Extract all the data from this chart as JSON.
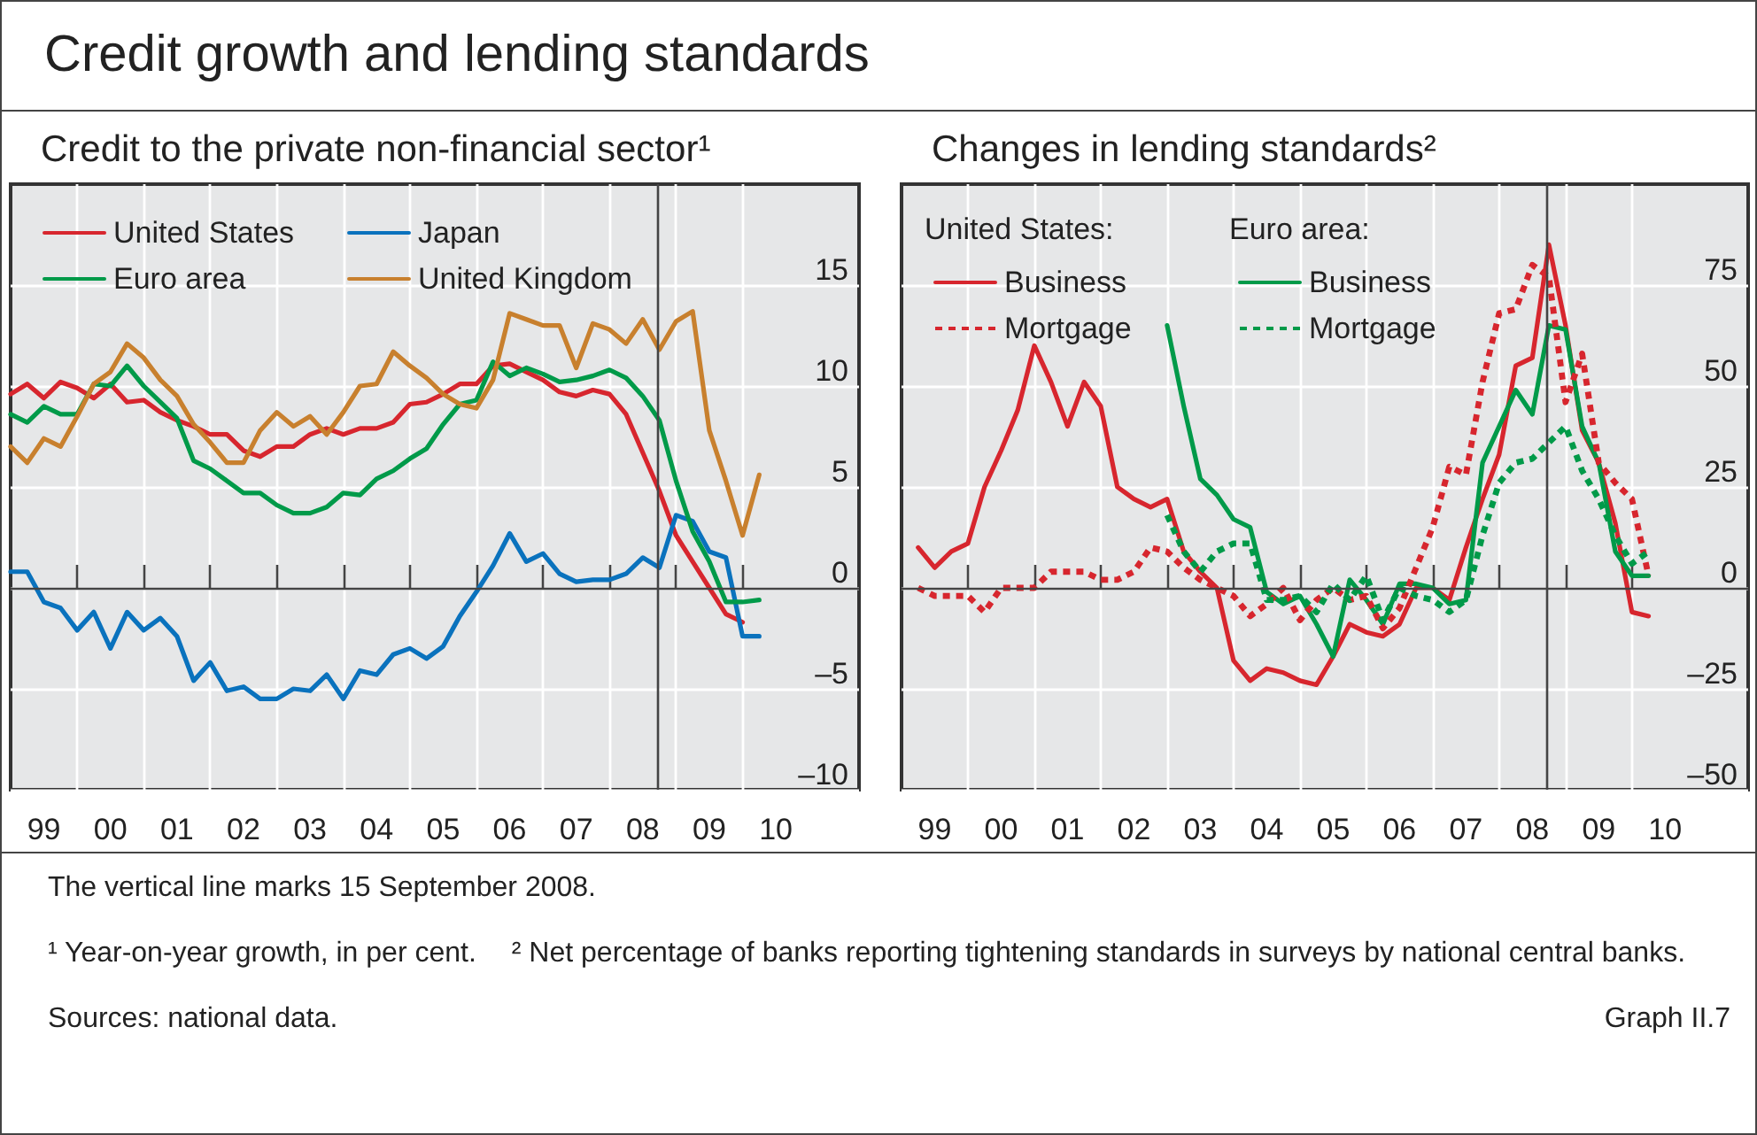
{
  "chart_data": [
    {
      "type": "other",
      "title": "Credit growth and lending standards"
    },
    {
      "type": "line",
      "title": "Credit to the private non-financial sector¹",
      "x": [
        "1999-01",
        "1999-04",
        "1999-07",
        "1999-10",
        "2000-01",
        "2000-04",
        "2000-07",
        "2000-10",
        "2001-01",
        "2001-04",
        "2001-07",
        "2001-10",
        "2002-01",
        "2002-04",
        "2002-07",
        "2002-10",
        "2003-01",
        "2003-04",
        "2003-07",
        "2003-10",
        "2004-01",
        "2004-04",
        "2004-07",
        "2004-10",
        "2005-01",
        "2005-04",
        "2005-07",
        "2005-10",
        "2006-01",
        "2006-04",
        "2006-07",
        "2006-10",
        "2007-01",
        "2007-04",
        "2007-07",
        "2007-10",
        "2008-01",
        "2008-04",
        "2008-07",
        "2008-10",
        "2009-01",
        "2009-04",
        "2009-07",
        "2009-10",
        "2010-01",
        "2010-04"
      ],
      "series": [
        {
          "name": "United States",
          "color": "#d7262e",
          "values": [
            9.6,
            10.1,
            9.4,
            10.2,
            9.9,
            9.4,
            10.1,
            9.2,
            9.3,
            8.7,
            8.3,
            8.0,
            7.6,
            7.6,
            6.8,
            6.5,
            7.0,
            7.0,
            7.6,
            7.9,
            7.6,
            7.9,
            7.9,
            8.2,
            9.1,
            9.2,
            9.6,
            10.1,
            10.1,
            11.0,
            11.1,
            10.7,
            10.3,
            9.7,
            9.5,
            9.8,
            9.6,
            8.6,
            6.7,
            4.8,
            2.6,
            1.3,
            0,
            -1.3,
            -1.7,
            null
          ]
        },
        {
          "name": "Japan",
          "color": "#0a72bd",
          "values": [
            0.8,
            0.8,
            -0.7,
            -1.0,
            -2.1,
            -1.2,
            -3.0,
            -1.2,
            -2.1,
            -1.5,
            -2.4,
            -4.6,
            -3.7,
            -5.1,
            -4.9,
            -5.5,
            -5.5,
            -5.0,
            -5.1,
            -4.3,
            -5.5,
            -4.1,
            -4.3,
            -3.3,
            -3.0,
            -3.5,
            -2.9,
            -1.4,
            -0.2,
            1.1,
            2.7,
            1.3,
            1.7,
            0.7,
            0.3,
            0.4,
            0.4,
            0.7,
            1.5,
            1.0,
            3.6,
            3.3,
            1.8,
            1.5,
            -2.4,
            -2.4
          ]
        },
        {
          "name": "Euro area",
          "color": "#009a49",
          "values": [
            8.6,
            8.2,
            9.0,
            8.6,
            8.6,
            10.1,
            10.0,
            11.0,
            10.0,
            9.2,
            8.4,
            6.3,
            5.9,
            5.3,
            4.7,
            4.7,
            4.1,
            3.7,
            3.7,
            4.0,
            4.7,
            4.6,
            5.4,
            5.8,
            6.4,
            6.9,
            8.1,
            9.1,
            9.3,
            11.2,
            10.5,
            10.9,
            10.6,
            10.2,
            10.3,
            10.5,
            10.8,
            10.4,
            9.5,
            8.3,
            5.3,
            2.8,
            1.3,
            -0.7,
            -0.7,
            -0.6
          ]
        },
        {
          "name": "United Kingdom",
          "color": "#c8802e",
          "values": [
            7.0,
            6.2,
            7.4,
            7.0,
            8.5,
            10.1,
            10.7,
            12.1,
            11.4,
            10.3,
            9.5,
            8.1,
            7.2,
            6.2,
            6.2,
            7.8,
            8.7,
            8.0,
            8.5,
            7.6,
            8.7,
            10.0,
            10.1,
            11.7,
            11.0,
            10.4,
            9.6,
            9.1,
            8.9,
            10.3,
            13.6,
            13.3,
            13.0,
            13.0,
            10.9,
            13.1,
            12.8,
            12.1,
            13.3,
            11.8,
            13.2,
            13.7,
            7.8,
            5.3,
            2.6,
            5.6
          ]
        }
      ],
      "xlim": [
        "1999-01",
        "2011-10"
      ],
      "xticks": [
        {
          "value": "1999-07",
          "label": "99"
        },
        {
          "value": "2000-01",
          "label": null
        },
        {
          "value": "2000-07",
          "label": "00"
        },
        {
          "value": "2001-01",
          "label": null
        },
        {
          "value": "2001-07",
          "label": "01"
        },
        {
          "value": "2002-01",
          "label": null
        },
        {
          "value": "2002-07",
          "label": "02"
        },
        {
          "value": "2003-01",
          "label": null
        },
        {
          "value": "2003-07",
          "label": "03"
        },
        {
          "value": "2004-01",
          "label": null
        },
        {
          "value": "2004-07",
          "label": "04"
        },
        {
          "value": "2005-01",
          "label": null
        },
        {
          "value": "2005-07",
          "label": "05"
        },
        {
          "value": "2006-01",
          "label": null
        },
        {
          "value": "2006-07",
          "label": "06"
        },
        {
          "value": "2007-01",
          "label": null
        },
        {
          "value": "2007-07",
          "label": "07"
        },
        {
          "value": "2008-01",
          "label": null
        },
        {
          "value": "2008-07",
          "label": "08"
        },
        {
          "value": "2009-01",
          "label": null
        },
        {
          "value": "2009-07",
          "label": "09"
        },
        {
          "value": "2010-01",
          "label": null
        },
        {
          "value": "2010-07",
          "label": "10"
        }
      ],
      "ylim": [
        -10,
        20
      ],
      "yticks": [
        {
          "value": -10,
          "label": "–10"
        },
        {
          "value": -5,
          "label": "–5"
        },
        0,
        5,
        10,
        15
      ],
      "ref_lines": [
        {
          "axis": "x",
          "value": "2008-09-15",
          "color": "#444444"
        },
        {
          "axis": "y",
          "value": 0,
          "color": "#444444"
        }
      ],
      "grid": true,
      "legend": "top left",
      "marker": "none",
      "line_style": "solid"
    },
    {
      "type": "line",
      "title": "Changes in lending standards²",
      "annotations": [
        "United States:",
        "Euro area:"
      ],
      "x": [
        "1999-04",
        "1999-07",
        "1999-10",
        "2000-01",
        "2000-04",
        "2000-07",
        "2000-10",
        "2001-01",
        "2001-04",
        "2001-07",
        "2001-10",
        "2002-01",
        "2002-04",
        "2002-07",
        "2002-10",
        "2003-01",
        "2003-04",
        "2003-07",
        "2003-10",
        "2004-01",
        "2004-04",
        "2004-07",
        "2004-10",
        "2005-01",
        "2005-04",
        "2005-07",
        "2005-10",
        "2006-01",
        "2006-04",
        "2006-07",
        "2006-10",
        "2007-01",
        "2007-04",
        "2007-07",
        "2007-10",
        "2008-01",
        "2008-04",
        "2008-07",
        "2008-10",
        "2009-01",
        "2009-04",
        "2009-07",
        "2009-10",
        "2010-01",
        "2010-04"
      ],
      "series": [
        {
          "name": "Business",
          "color": "#d7262e",
          "line_style": "solid",
          "values": [
            10,
            5,
            9,
            11,
            25,
            34,
            44,
            60,
            51,
            40,
            51,
            45,
            25,
            22,
            20,
            22,
            9,
            4,
            0,
            -18,
            -23,
            -20,
            -21,
            -23,
            -24,
            -17,
            -9,
            -11,
            -12,
            -9,
            0,
            0,
            -3,
            10,
            22,
            33,
            55,
            57,
            85,
            65,
            39,
            31,
            16,
            -6,
            -7
          ]
        },
        {
          "name": "Business",
          "color": "#009a49",
          "line_style": "solid",
          "values": [
            null,
            null,
            null,
            null,
            null,
            null,
            null,
            null,
            null,
            null,
            null,
            null,
            null,
            null,
            null,
            65,
            45,
            27,
            23,
            17,
            15,
            -1,
            -4,
            -2,
            -9,
            -17,
            2,
            -3,
            -9,
            1,
            1,
            0,
            -4,
            -3,
            31,
            40,
            49,
            43,
            65,
            64,
            40,
            31,
            9,
            3,
            3
          ]
        },
        {
          "name": "Mortgage",
          "color": "#d7262e",
          "line_style": "dotted",
          "values": [
            0,
            -2,
            -2,
            -2,
            -6,
            0,
            0,
            0,
            4,
            4,
            4,
            2,
            2,
            4,
            10,
            9,
            5,
            2,
            0,
            -2,
            -7,
            -4,
            0,
            -8,
            -3,
            0,
            -3,
            -2,
            -10,
            -5,
            5,
            15,
            30,
            28,
            51,
            68,
            69,
            80,
            77,
            46,
            58,
            31,
            26,
            22,
            3
          ]
        },
        {
          "name": "Mortgage",
          "color": "#009a49",
          "line_style": "dotted",
          "values": [
            null,
            null,
            null,
            null,
            null,
            null,
            null,
            null,
            null,
            null,
            null,
            null,
            null,
            null,
            null,
            18,
            9,
            4,
            9,
            11,
            11,
            -3,
            -3,
            -2,
            -6,
            1,
            -3,
            3,
            -8,
            0,
            -2,
            -3,
            -6,
            -3,
            13,
            26,
            31,
            32,
            36,
            40,
            29,
            22,
            13,
            6,
            9
          ]
        }
      ],
      "xlim": [
        "1999-01",
        "2011-10"
      ],
      "xticks": [
        {
          "value": "1999-07",
          "label": "99"
        },
        {
          "value": "2000-01",
          "label": null
        },
        {
          "value": "2000-07",
          "label": "00"
        },
        {
          "value": "2001-01",
          "label": null
        },
        {
          "value": "2001-07",
          "label": "01"
        },
        {
          "value": "2002-01",
          "label": null
        },
        {
          "value": "2002-07",
          "label": "02"
        },
        {
          "value": "2003-01",
          "label": null
        },
        {
          "value": "2003-07",
          "label": "03"
        },
        {
          "value": "2004-01",
          "label": null
        },
        {
          "value": "2004-07",
          "label": "04"
        },
        {
          "value": "2005-01",
          "label": null
        },
        {
          "value": "2005-07",
          "label": "05"
        },
        {
          "value": "2006-01",
          "label": null
        },
        {
          "value": "2006-07",
          "label": "06"
        },
        {
          "value": "2007-01",
          "label": null
        },
        {
          "value": "2007-07",
          "label": "07"
        },
        {
          "value": "2008-01",
          "label": null
        },
        {
          "value": "2008-07",
          "label": "08"
        },
        {
          "value": "2009-01",
          "label": null
        },
        {
          "value": "2009-07",
          "label": "09"
        },
        {
          "value": "2010-01",
          "label": null
        },
        {
          "value": "2010-07",
          "label": "10"
        }
      ],
      "ylim": [
        -50,
        100
      ],
      "yticks": [
        {
          "value": -50,
          "label": "–50"
        },
        {
          "value": -25,
          "label": "–25"
        },
        0,
        25,
        50,
        75
      ],
      "ref_lines": [
        {
          "axis": "x",
          "value": "2008-09-15",
          "color": "#444444"
        },
        {
          "axis": "y",
          "value": 0,
          "color": "#444444"
        }
      ],
      "grid": true,
      "legend": "top left",
      "marker": "none"
    },
    {
      "type": "other",
      "annotations": [
        "The vertical line marks 15 September 2008.",
        "¹ Year-on-year growth, in per cent.",
        "² Net percentage of banks reporting tightening standards in surveys by national central banks.",
        "Sources: national data.",
        "Graph II.7"
      ]
    }
  ]
}
